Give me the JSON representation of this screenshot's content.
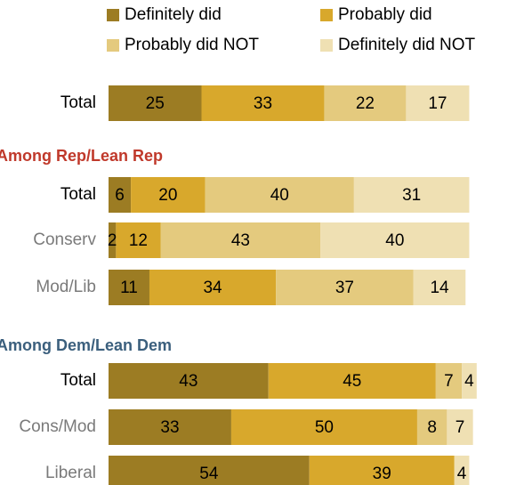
{
  "chart_data": {
    "type": "bar",
    "orientation": "horizontal",
    "stacked": true,
    "legend_position": "top",
    "series": [
      {
        "name": "Definitely did",
        "color": "#9c7c23"
      },
      {
        "name": "Probably did",
        "color": "#d8a82c"
      },
      {
        "name": "Probably did NOT",
        "color": "#e4ca7e"
      },
      {
        "name": "Definitely did NOT",
        "color": "#efe0b3"
      }
    ],
    "groups": [
      {
        "heading": "",
        "heading_color": "",
        "rows": [
          {
            "label": "Total",
            "label_color": "#000000",
            "values": [
              25,
              33,
              22,
              17
            ],
            "labels": [
              "25",
              "33",
              "22",
              "17"
            ]
          }
        ]
      },
      {
        "heading": "Among Rep/Lean Rep",
        "heading_color": "#c0392b",
        "rows": [
          {
            "label": "Total",
            "label_color": "#000000",
            "values": [
              6,
              20,
              40,
              31
            ],
            "labels": [
              "6",
              "20",
              "40",
              "31"
            ]
          },
          {
            "label": "Conserv",
            "label_color": "#7a7a7a",
            "values": [
              2,
              12,
              43,
              40
            ],
            "labels": [
              "2",
              "12",
              "43",
              "40"
            ]
          },
          {
            "label": "Mod/Lib",
            "label_color": "#7a7a7a",
            "values": [
              11,
              34,
              37,
              14
            ],
            "labels": [
              "11",
              "34",
              "37",
              "14"
            ]
          }
        ]
      },
      {
        "heading": "Among Dem/Lean Dem",
        "heading_color": "#3b5f7d",
        "rows": [
          {
            "label": "Total",
            "label_color": "#000000",
            "values": [
              43,
              45,
              7,
              4
            ],
            "labels": [
              "43",
              "45",
              "7",
              "4"
            ]
          },
          {
            "label": "Cons/Mod",
            "label_color": "#7a7a7a",
            "values": [
              33,
              50,
              8,
              7
            ],
            "labels": [
              "33",
              "50",
              "8",
              "7"
            ]
          },
          {
            "label": "Liberal",
            "label_color": "#7a7a7a",
            "values": [
              54,
              39,
              0,
              4
            ],
            "labels": [
              "54",
              "39",
              "",
              "4"
            ]
          }
        ]
      }
    ]
  }
}
